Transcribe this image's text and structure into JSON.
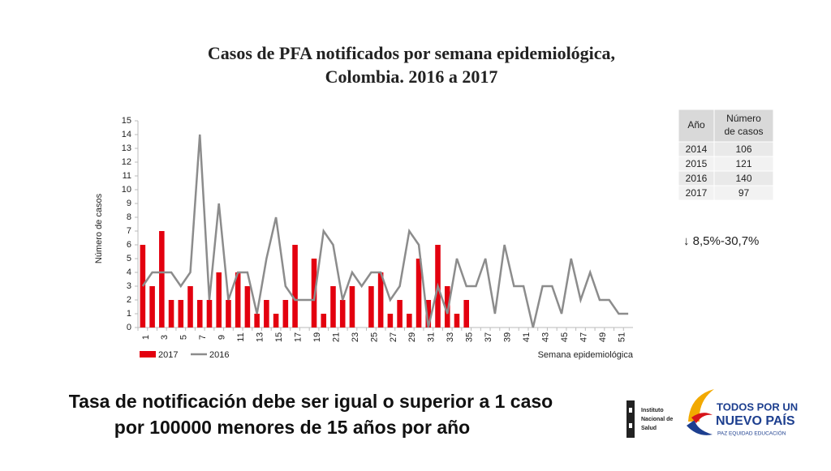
{
  "chart_data": {
    "type": "bar_line",
    "title": [
      "Casos de PFA notificados por semana epidemiológica,",
      "Colombia. 2016 a 2017"
    ],
    "y_label": "Número de casos",
    "x_label": "Semana epidemiológica",
    "categories": [
      1,
      null,
      3,
      null,
      5,
      null,
      7,
      null,
      9,
      null,
      11,
      null,
      13,
      null,
      15,
      null,
      17,
      null,
      19,
      null,
      21,
      null,
      23,
      null,
      25,
      null,
      27,
      null,
      29,
      null,
      31,
      null,
      33,
      null,
      35,
      null,
      37,
      null,
      39,
      null,
      41,
      null,
      43,
      null,
      45,
      null,
      47,
      null,
      49,
      null,
      51,
      null
    ],
    "series": [
      {
        "name": "2017",
        "type": "bar",
        "color": "#e3000f",
        "values": [
          6,
          3,
          7,
          2,
          2,
          3,
          2,
          2,
          4,
          2,
          4,
          3,
          1,
          2,
          1,
          2,
          6,
          0,
          5,
          1,
          3,
          2,
          3,
          0,
          3,
          4,
          1,
          2,
          1,
          5,
          2,
          6,
          3,
          1,
          2,
          null,
          null,
          null,
          null,
          null,
          null,
          null,
          null,
          null,
          null,
          null,
          null,
          null,
          null,
          null,
          null,
          null
        ]
      },
      {
        "name": "2016",
        "type": "line",
        "color": "#8c8c8c",
        "values": [
          3,
          4,
          4,
          4,
          3,
          4,
          14,
          2,
          9,
          2,
          4,
          4,
          1,
          5,
          8,
          3,
          2,
          2,
          2,
          7,
          6,
          2,
          4,
          3,
          4,
          4,
          2,
          3,
          7,
          6,
          0,
          3,
          1,
          5,
          3,
          3,
          5,
          1,
          6,
          3,
          3,
          0,
          3,
          3,
          1,
          5,
          2,
          4,
          2,
          2,
          1,
          1
        ]
      }
    ],
    "ylim": [
      0,
      15
    ],
    "yticks": [
      0,
      1,
      2,
      3,
      4,
      5,
      6,
      7,
      8,
      9,
      10,
      11,
      12,
      13,
      14,
      15
    ],
    "grid": false,
    "legend": "bottom-left"
  },
  "table": {
    "header": [
      "Año",
      "Número de casos"
    ],
    "rows": [
      [
        "2014",
        "106"
      ],
      [
        "2015",
        "121"
      ],
      [
        "2016",
        "140"
      ],
      [
        "2017",
        "97"
      ]
    ]
  },
  "note": "↓ 8,5%-30,7%",
  "footer": [
    "Tasa de notificación debe ser igual o superior a 1 caso",
    "por 100000 menores de 15 años por año"
  ],
  "logos": {
    "ins": [
      "Instituto",
      "Nacional de",
      "Salud"
    ],
    "gov": [
      "TODOS POR UN",
      "NUEVO PAÍS",
      "PAZ  EQUIDAD  EDUCACIÓN"
    ]
  }
}
